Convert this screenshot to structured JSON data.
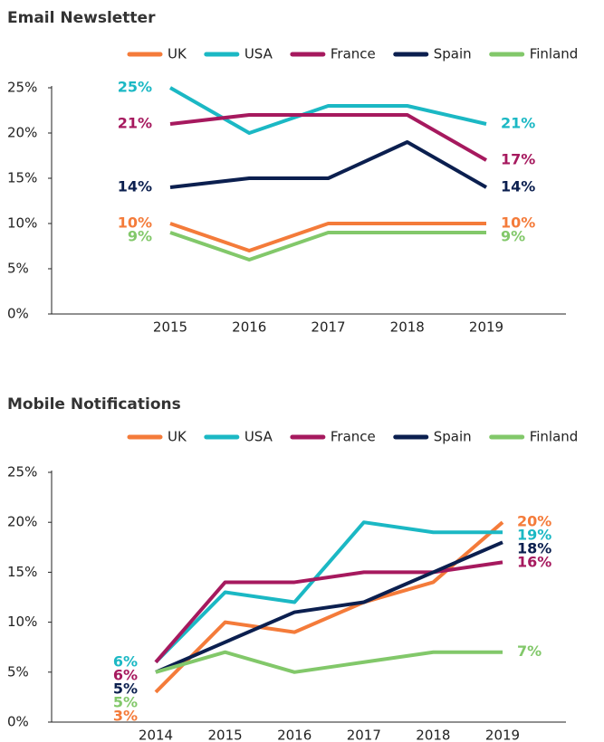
{
  "chart_data": [
    {
      "type": "line",
      "title": "Email Newsletter",
      "legend": "top",
      "categories": [
        "2015",
        "2016",
        "2017",
        "2018",
        "2019"
      ],
      "ylim": [
        0,
        25
      ],
      "yticks": [
        {
          "value": 0,
          "label": "0%"
        },
        {
          "value": 5,
          "label": "5%"
        },
        {
          "value": 10,
          "label": "10%"
        },
        {
          "value": 15,
          "label": "15%"
        },
        {
          "value": 20,
          "label": "20%"
        },
        {
          "value": 25,
          "label": "25%"
        }
      ],
      "series": [
        {
          "name": "UK",
          "color": "#f47b3a",
          "values": [
            10,
            7,
            10,
            10,
            10
          ],
          "value_labels": [
            "10%",
            null,
            null,
            null,
            "10%"
          ]
        },
        {
          "name": "USA",
          "color": "#1bb8c4",
          "values": [
            25,
            20,
            23,
            23,
            21
          ],
          "value_labels": [
            "25%",
            null,
            null,
            null,
            "21%"
          ]
        },
        {
          "name": "France",
          "color": "#a6195e",
          "values": [
            21,
            22,
            22,
            22,
            17
          ],
          "value_labels": [
            "21%",
            null,
            null,
            null,
            "17%"
          ]
        },
        {
          "name": "Spain",
          "color": "#0b1f4f",
          "values": [
            14,
            15,
            15,
            19,
            14
          ],
          "value_labels": [
            "14%",
            null,
            null,
            null,
            "14%"
          ]
        },
        {
          "name": "Finland",
          "color": "#82c86a",
          "values": [
            9,
            6,
            9,
            9,
            9
          ],
          "value_labels": [
            "9%",
            null,
            null,
            null,
            "9%"
          ]
        }
      ]
    },
    {
      "type": "line",
      "title": "Mobile Notifications",
      "legend": "top",
      "categories": [
        "2014",
        "2015",
        "2016",
        "2017",
        "2018",
        "2019"
      ],
      "ylim": [
        0,
        25
      ],
      "yticks": [
        {
          "value": 0,
          "label": "0%"
        },
        {
          "value": 5,
          "label": "5%"
        },
        {
          "value": 10,
          "label": "10%"
        },
        {
          "value": 15,
          "label": "15%"
        },
        {
          "value": 20,
          "label": "20%"
        },
        {
          "value": 25,
          "label": "25%"
        }
      ],
      "series": [
        {
          "name": "UK",
          "color": "#f47b3a",
          "values": [
            3,
            10,
            9,
            12,
            14,
            20
          ],
          "value_labels": [
            "3%",
            null,
            null,
            null,
            null,
            "20%"
          ]
        },
        {
          "name": "USA",
          "color": "#1bb8c4",
          "values": [
            6,
            13,
            12,
            20,
            19,
            19
          ],
          "value_labels": [
            "6%",
            null,
            null,
            null,
            null,
            "19%"
          ]
        },
        {
          "name": "France",
          "color": "#a6195e",
          "values": [
            6,
            14,
            14,
            15,
            15,
            16
          ],
          "value_labels": [
            "6%",
            null,
            null,
            null,
            null,
            "16%"
          ]
        },
        {
          "name": "Spain",
          "color": "#0b1f4f",
          "values": [
            5,
            8,
            11,
            12,
            15,
            18
          ],
          "value_labels": [
            "5%",
            null,
            null,
            null,
            null,
            "18%"
          ]
        },
        {
          "name": "Finland",
          "color": "#82c86a",
          "values": [
            5,
            7,
            5,
            6,
            7,
            7
          ],
          "value_labels": [
            "5%",
            null,
            null,
            null,
            null,
            "7%"
          ]
        }
      ]
    }
  ]
}
